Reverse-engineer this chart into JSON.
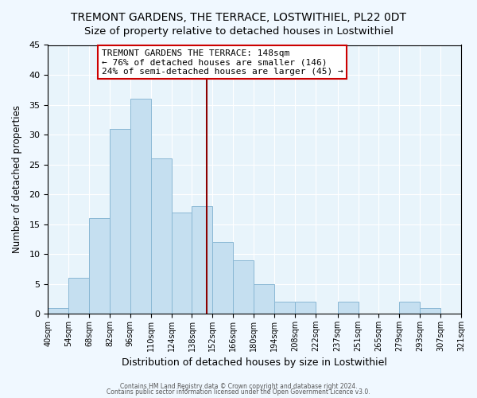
{
  "title": "TREMONT GARDENS, THE TERRACE, LOSTWITHIEL, PL22 0DT",
  "subtitle": "Size of property relative to detached houses in Lostwithiel",
  "xlabel": "Distribution of detached houses by size in Lostwithiel",
  "ylabel": "Number of detached properties",
  "footer_line1": "Contains HM Land Registry data © Crown copyright and database right 2024.",
  "footer_line2": "Contains public sector information licensed under the Open Government Licence v3.0.",
  "bin_edges": [
    40,
    54,
    68,
    82,
    96,
    110,
    124,
    138,
    152,
    166,
    180,
    194,
    208,
    222,
    237,
    251,
    265,
    279,
    293,
    307,
    321
  ],
  "bin_counts": [
    1,
    6,
    16,
    31,
    36,
    26,
    17,
    18,
    12,
    9,
    5,
    2,
    2,
    0,
    2,
    0,
    0,
    2,
    1,
    0
  ],
  "bar_color": "#c5dff0",
  "bar_edge_color": "#8ab8d4",
  "vline_x": 148,
  "vline_color": "#8b0000",
  "annotation_title": "TREMONT GARDENS THE TERRACE: 148sqm",
  "annotation_line2": "← 76% of detached houses are smaller (146)",
  "annotation_line3": "24% of semi-detached houses are larger (45) →",
  "ylim": [
    0,
    45
  ],
  "yticks": [
    0,
    5,
    10,
    15,
    20,
    25,
    30,
    35,
    40,
    45
  ],
  "background_color": "#f0f8ff",
  "plot_background_color": "#e8f4fb",
  "title_fontsize": 10,
  "subtitle_fontsize": 9.5,
  "xlabel_fontsize": 9,
  "ylabel_fontsize": 8.5,
  "annotation_fontsize": 8,
  "tick_fontsize": 7
}
